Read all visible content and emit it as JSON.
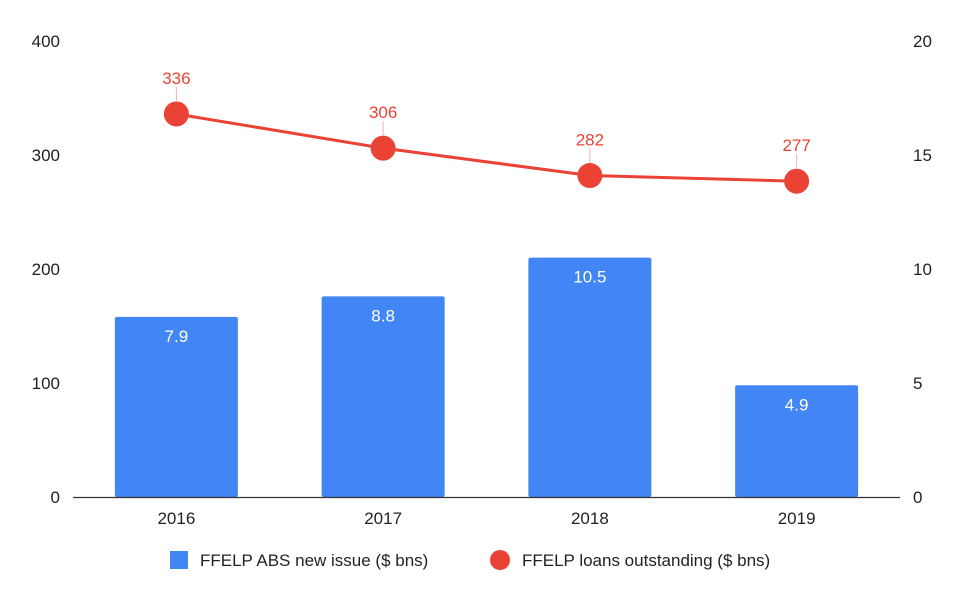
{
  "chart_data": {
    "type": "bar",
    "title": "",
    "xlabel": "",
    "ylabel": "",
    "categories": [
      "2016",
      "2017",
      "2018",
      "2019"
    ],
    "y_left": {
      "ticks": [
        "0",
        "100",
        "200",
        "300",
        "400"
      ],
      "range": [
        0,
        400
      ]
    },
    "y_right": {
      "ticks": [
        "0",
        "5",
        "10",
        "15",
        "20"
      ],
      "range": [
        0,
        20
      ]
    },
    "series": [
      {
        "name": "FFELP ABS new issue ($ bns)",
        "type": "bar",
        "axis": "right",
        "color": "#4285f4",
        "values": [
          7.9,
          8.8,
          10.5,
          4.9
        ],
        "labels": [
          "7.9",
          "8.8",
          "10.5",
          "4.9"
        ]
      },
      {
        "name": "FFELP loans outstanding ($ bns)",
        "type": "line",
        "axis": "left",
        "color": "#ea4335",
        "values": [
          336,
          306,
          282,
          277
        ],
        "labels": [
          "336",
          "306",
          "282",
          "277"
        ]
      }
    ],
    "grid": false,
    "legend_position": "bottom"
  }
}
